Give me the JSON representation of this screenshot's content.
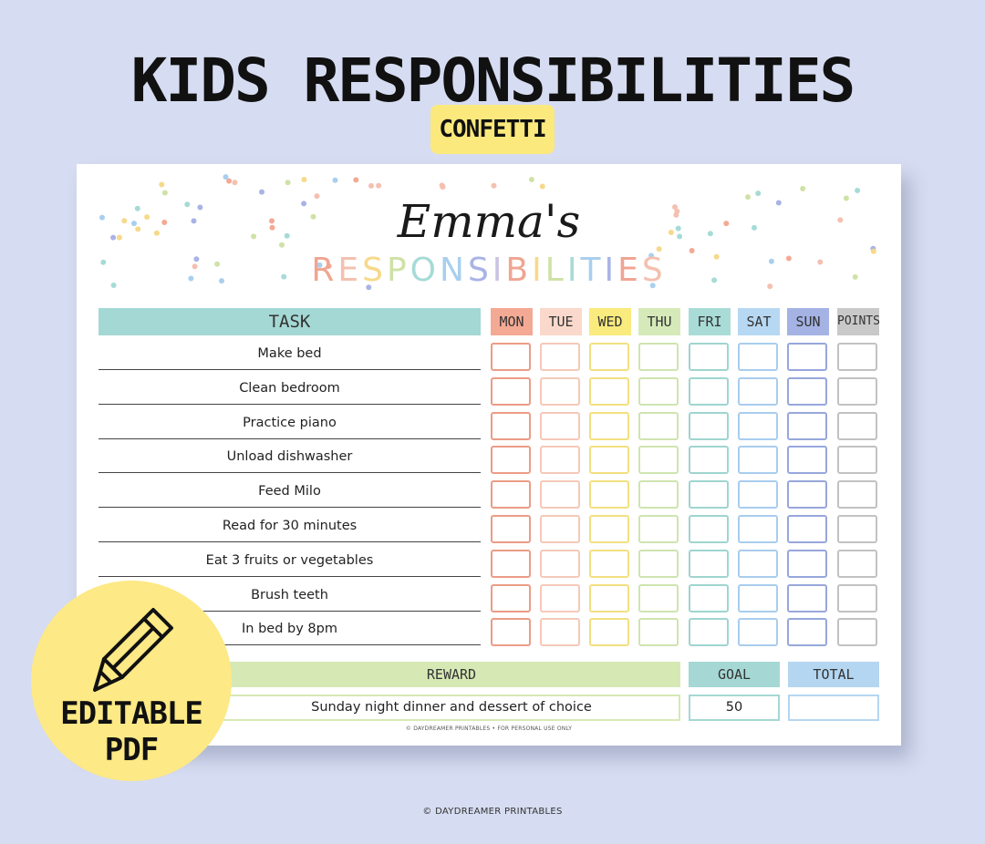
{
  "header": {
    "title": "KIDS RESPONSIBILITIES",
    "subtitle": "CONFETTI"
  },
  "sheet": {
    "name_script": "Emma's",
    "heading": "RESPONSIBILITIES",
    "heading_colors": [
      "#f0a592",
      "#f4c0b0",
      "#f6d98a",
      "#cfe2a6",
      "#a6dbd7",
      "#a9cfee",
      "#a8b4e6",
      "#c9c2e4",
      "#f0a592",
      "#f6d98a",
      "#cfe2a6",
      "#a6dbd7",
      "#a9cfee",
      "#a8b4e6",
      "#f0a592",
      "#f4c0b0"
    ],
    "task_header": "TASK",
    "days": [
      {
        "label": "MON",
        "fill": "#f4a994",
        "border": "#ec9c86"
      },
      {
        "label": "TUE",
        "fill": "#fad9cc",
        "border": "#f4c9b9"
      },
      {
        "label": "WED",
        "fill": "#f9eb7d",
        "border": "#f2e080"
      },
      {
        "label": "THU",
        "fill": "#d6eab9",
        "border": "#cfe4b0"
      },
      {
        "label": "FRI",
        "fill": "#a9dcd7",
        "border": "#9fd5d0"
      },
      {
        "label": "SAT",
        "fill": "#b7d8f3",
        "border": "#a9cdee"
      },
      {
        "label": "SUN",
        "fill": "#a4b3e4",
        "border": "#97a7dc"
      },
      {
        "label": "POINTS",
        "fill": "#c9c9c9",
        "border": "#c2c2c2"
      }
    ],
    "tasks": [
      "Make bed",
      "Clean bedroom",
      "Practice piano",
      "Unload dishwasher",
      "Feed Milo",
      "Read for 30 minutes",
      "Eat 3 fruits or vegetables",
      "Brush teeth",
      "In bed by 8pm"
    ],
    "reward_header": "REWARD",
    "reward_value": "Sunday night dinner and dessert of choice",
    "goal_header": "GOAL",
    "goal_value": "50",
    "total_header": "TOTAL",
    "footer": "© DAYDREAMER PRINTABLES • FOR PERSONAL USE ONLY",
    "confetti_colors": [
      "#f4a994",
      "#f6d98a",
      "#cfe2a6",
      "#a6dbd7",
      "#a9cfee",
      "#a8b4e6",
      "#f4c0b0"
    ]
  },
  "badge": {
    "icon": "pencil-icon",
    "line1": "EDITABLE",
    "line2": "PDF"
  },
  "footer": {
    "credit": "© DAYDREAMER PRINTABLES"
  }
}
